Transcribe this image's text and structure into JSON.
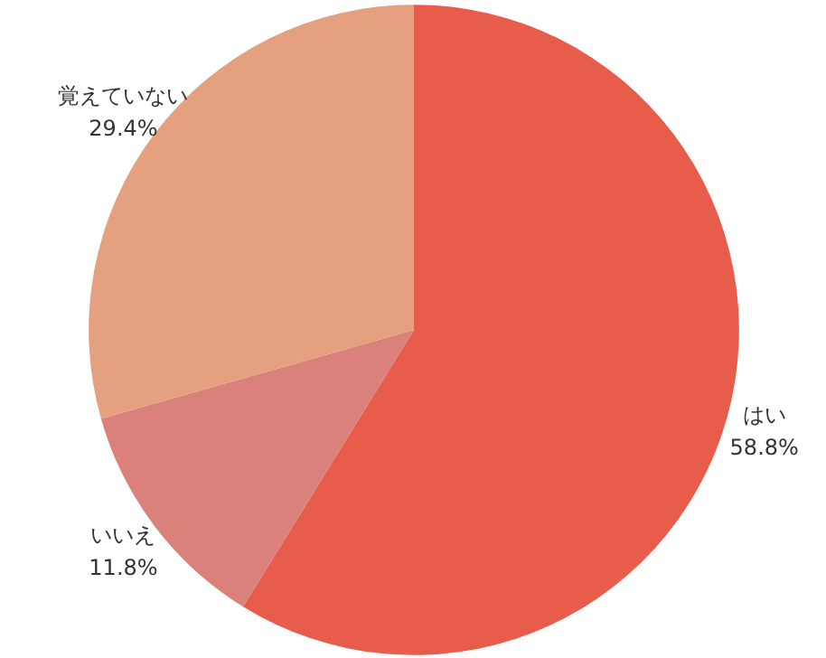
{
  "chart_data": {
    "type": "pie",
    "categories": [
      "はい",
      "いいえ",
      "覚えていない"
    ],
    "values": [
      58.8,
      11.8,
      29.4
    ],
    "value_labels": [
      "58.8%",
      "11.8%",
      "29.4%"
    ],
    "colors": [
      "#e85c4b",
      "#d9817a",
      "#e5a07f"
    ]
  }
}
